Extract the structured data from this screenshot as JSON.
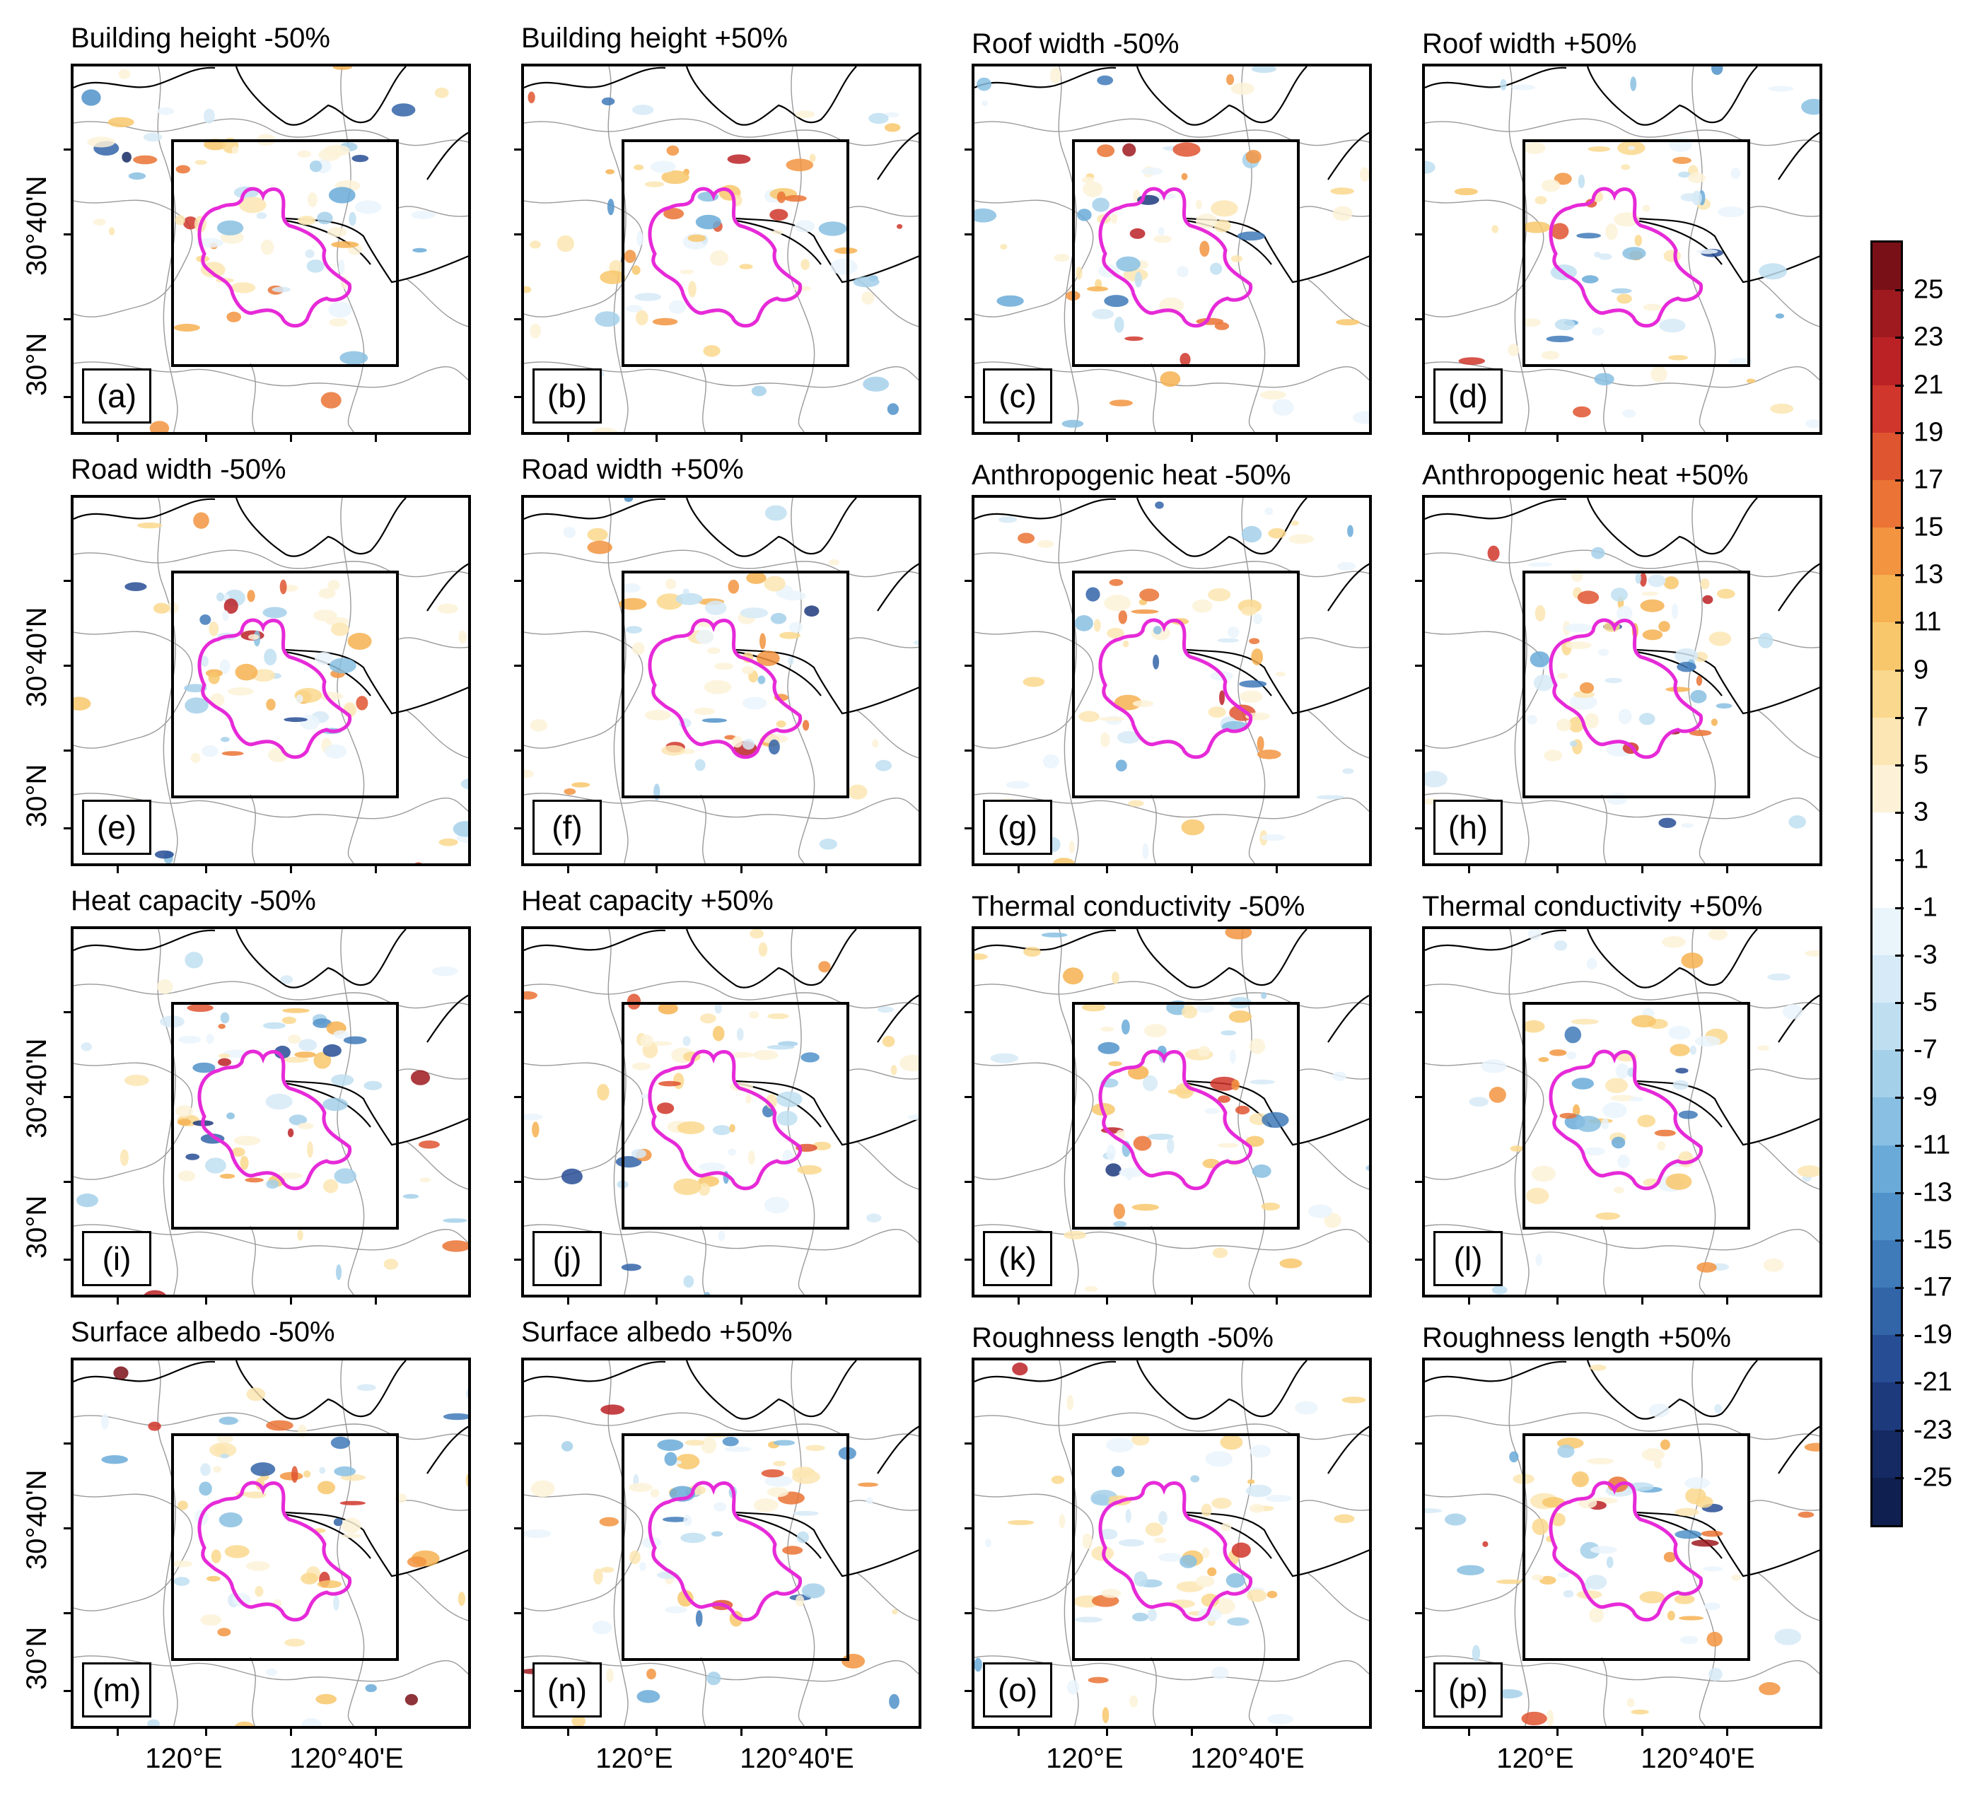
{
  "panels": [
    {
      "title": "Building height -50%",
      "label": "(a)"
    },
    {
      "title": "Building height +50%",
      "label": "(b)"
    },
    {
      "title": "Roof width -50%",
      "label": "(c)"
    },
    {
      "title": "Roof width +50%",
      "label": "(d)"
    },
    {
      "title": "Road width -50%",
      "label": "(e)"
    },
    {
      "title": "Road width +50%",
      "label": "(f)"
    },
    {
      "title": "Anthropogenic heat -50%",
      "label": "(g)"
    },
    {
      "title": "Anthropogenic heat +50%",
      "label": "(h)"
    },
    {
      "title": "Heat capacity -50%",
      "label": "(i)"
    },
    {
      "title": "Heat capacity +50%",
      "label": "(j)"
    },
    {
      "title": "Thermal conductivity -50%",
      "label": "(k)"
    },
    {
      "title": "Thermal conductivity +50%",
      "label": "(l)"
    },
    {
      "title": "Surface albedo -50%",
      "label": "(m)"
    },
    {
      "title": "Surface albedo +50%",
      "label": "(n)"
    },
    {
      "title": "Roughness length -50%",
      "label": "(o)"
    },
    {
      "title": "Roughness length +50%",
      "label": "(p)"
    }
  ],
  "axes": {
    "y_labels": [
      "30°40'N",
      "30°N"
    ],
    "x_labels": [
      "120°E",
      "120°40'E"
    ]
  },
  "colorbar": {
    "labels": [
      "25",
      "23",
      "21",
      "19",
      "17",
      "15",
      "13",
      "11",
      "9",
      "7",
      "5",
      "3",
      "1",
      "-1",
      "-3",
      "-5",
      "-7",
      "-9",
      "-11",
      "-13",
      "-15",
      "-17",
      "-19",
      "-21",
      "-23",
      "-25"
    ],
    "colors": [
      "#7a1017",
      "#9e1a1f",
      "#bb2226",
      "#d0362b",
      "#df5530",
      "#ea7335",
      "#f29440",
      "#f6b151",
      "#f8c76b",
      "#fad88d",
      "#fce6b3",
      "#fdf2d8",
      "#ffffff",
      "#ffffff",
      "#eaf4fb",
      "#d6eaf7",
      "#bfdff1",
      "#a5d0ea",
      "#88bfe2",
      "#6aaad8",
      "#5092c9",
      "#3f7ab9",
      "#3264a8",
      "#274e95",
      "#1d3a7d",
      "#152a62",
      "#0f1f4f"
    ]
  },
  "colors": {
    "urban_boundary": "#e62ad8",
    "frame": "#000000",
    "admin_lines": "#9a9a9a"
  }
}
